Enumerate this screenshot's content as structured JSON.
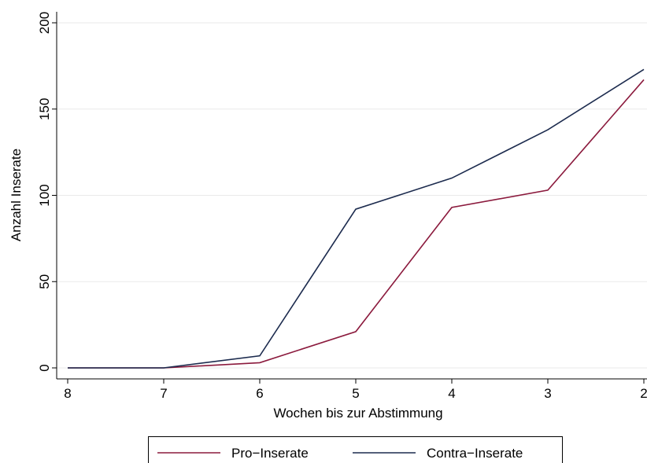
{
  "chart_data": {
    "type": "line",
    "x": [
      8,
      7,
      6,
      5,
      4,
      3,
      2
    ],
    "xlabel": "Wochen bis zur Abstimmung",
    "ylabel": "Anzahl Inserate",
    "series": [
      {
        "name": "Pro−Inserate",
        "color": "#8b1a3d",
        "values": [
          0,
          0,
          3,
          21,
          93,
          103,
          167
        ]
      },
      {
        "name": "Contra−Inserate",
        "color": "#1c2b4e",
        "values": [
          0,
          0,
          7,
          92,
          110,
          138,
          173
        ]
      }
    ],
    "xlim": [
      8,
      2
    ],
    "xticks": [
      8,
      7,
      6,
      5,
      4,
      3,
      2
    ],
    "ylim": [
      0,
      200
    ],
    "yticks": [
      0,
      50,
      100,
      150,
      200
    ],
    "grid": true,
    "legend": "bottom"
  }
}
